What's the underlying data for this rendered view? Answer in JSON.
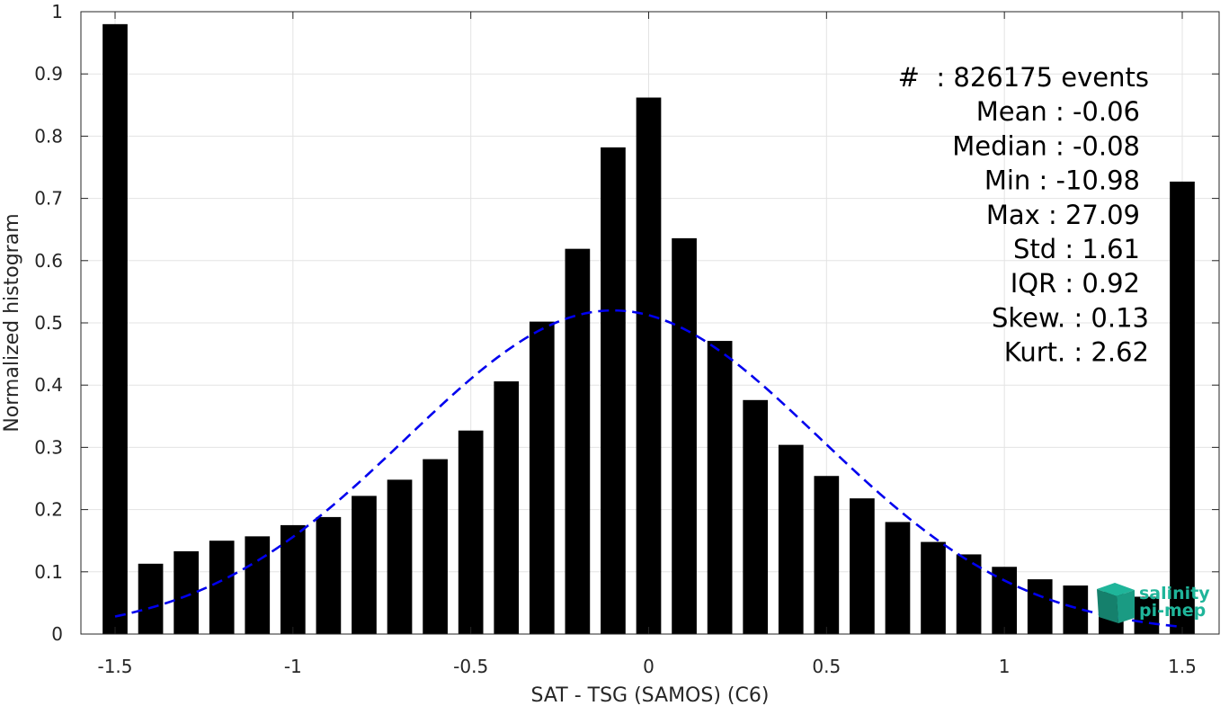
{
  "chart_data": {
    "type": "bar",
    "xlabel": "SAT - TSG (SAMOS) (C6)",
    "ylabel": "Normalized histogram",
    "xlim": [
      -1.6,
      1.6
    ],
    "ylim": [
      0,
      1
    ],
    "grid": true,
    "x_ticks": [
      -1.5,
      -1,
      -0.5,
      0,
      0.5,
      1,
      1.5
    ],
    "x_tick_labels": [
      "-1.5",
      "-1",
      "-0.5",
      "0",
      "0.5",
      "1",
      "1.5"
    ],
    "y_ticks": [
      0,
      0.1,
      0.2,
      0.3,
      0.4,
      0.5,
      0.6,
      0.7,
      0.8,
      0.9,
      1
    ],
    "y_tick_labels": [
      "0",
      "0.1",
      "0.2",
      "0.3",
      "0.4",
      "0.5",
      "0.6",
      "0.7",
      "0.8",
      "0.9",
      "1"
    ],
    "bar_width": 0.07,
    "bar_color": "#000000",
    "x": [
      -1.5,
      -1.4,
      -1.3,
      -1.2,
      -1.1,
      -1.0,
      -0.9,
      -0.8,
      -0.7,
      -0.6,
      -0.5,
      -0.4,
      -0.3,
      -0.2,
      -0.1,
      0.0,
      0.1,
      0.2,
      0.3,
      0.4,
      0.5,
      0.6,
      0.7,
      0.8,
      0.9,
      1.0,
      1.1,
      1.2,
      1.3,
      1.4,
      1.5
    ],
    "values": [
      0.98,
      0.113,
      0.133,
      0.15,
      0.157,
      0.175,
      0.188,
      0.222,
      0.248,
      0.281,
      0.327,
      0.406,
      0.502,
      0.619,
      0.782,
      0.862,
      0.636,
      0.471,
      0.376,
      0.304,
      0.254,
      0.218,
      0.18,
      0.148,
      0.128,
      0.108,
      0.088,
      0.078,
      0.068,
      0.06,
      0.727
    ],
    "fit_curve": {
      "type": "gaussian",
      "style": "dashed",
      "color": "#0000ee",
      "mean": -0.1,
      "peak": 0.52,
      "sigma": 0.58,
      "x_range": [
        -1.5,
        1.5
      ]
    },
    "stats_lines": [
      "#  : 826175 events",
      "Mean : -0.06",
      "Median : -0.08",
      "Min : -10.98",
      "Max : 27.09",
      "Std : 1.61",
      "IQR : 0.92",
      "Skew. : 0.13",
      "Kurt. : 2.62"
    ]
  },
  "logo": {
    "line1": "salinity",
    "line2": "pi-mep",
    "color": "#1fb59a"
  }
}
